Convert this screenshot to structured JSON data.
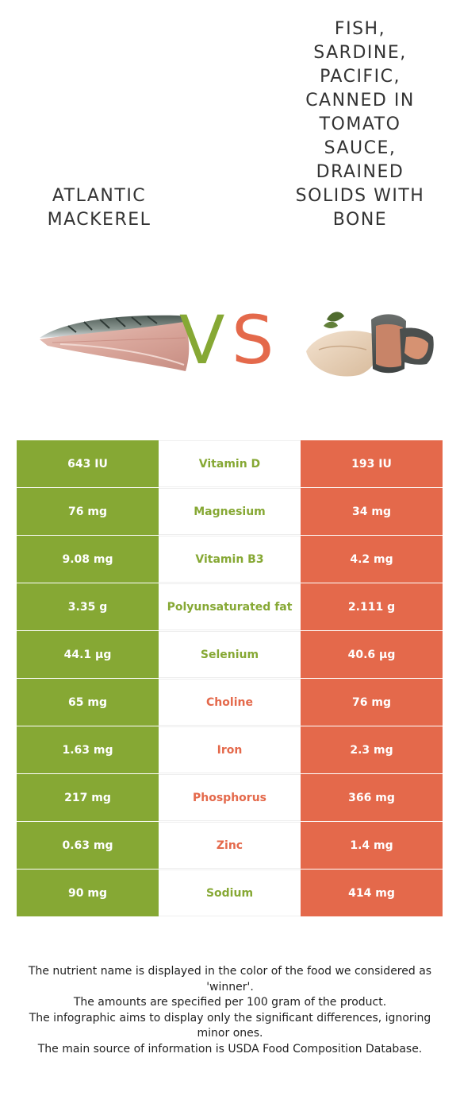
{
  "colors": {
    "left": "#86a834",
    "right": "#e4694b",
    "text": "#333333"
  },
  "left_food": {
    "name": "Atlantic mackerel",
    "image_icon": "mackerel-fillet-icon"
  },
  "right_food": {
    "name": "Fish, sardine, Pacific, canned in tomato sauce, drained solids with bone",
    "image_icon": "sardine-pieces-icon"
  },
  "vs": {
    "v": "V",
    "s": "S"
  },
  "rows": [
    {
      "nutrient": "Vitamin D",
      "left": "643 IU",
      "right": "193 IU",
      "winner": "left"
    },
    {
      "nutrient": "Magnesium",
      "left": "76 mg",
      "right": "34 mg",
      "winner": "left"
    },
    {
      "nutrient": "Vitamin B3",
      "left": "9.08 mg",
      "right": "4.2 mg",
      "winner": "left"
    },
    {
      "nutrient": "Polyunsaturated fat",
      "left": "3.35 g",
      "right": "2.111 g",
      "winner": "left"
    },
    {
      "nutrient": "Selenium",
      "left": "44.1 µg",
      "right": "40.6 µg",
      "winner": "left"
    },
    {
      "nutrient": "Choline",
      "left": "65 mg",
      "right": "76 mg",
      "winner": "right"
    },
    {
      "nutrient": "Iron",
      "left": "1.63 mg",
      "right": "2.3 mg",
      "winner": "right"
    },
    {
      "nutrient": "Phosphorus",
      "left": "217 mg",
      "right": "366 mg",
      "winner": "right"
    },
    {
      "nutrient": "Zinc",
      "left": "0.63 mg",
      "right": "1.4 mg",
      "winner": "right"
    },
    {
      "nutrient": "Sodium",
      "left": "90 mg",
      "right": "414 mg",
      "winner": "left"
    }
  ],
  "notes": [
    "The nutrient name is displayed in the color of the food we considered as 'winner'.",
    "The amounts are specified per 100 gram of the product.",
    "The infographic aims to display only the significant differences, ignoring minor ones.",
    "The main source of information is USDA Food Composition Database."
  ]
}
